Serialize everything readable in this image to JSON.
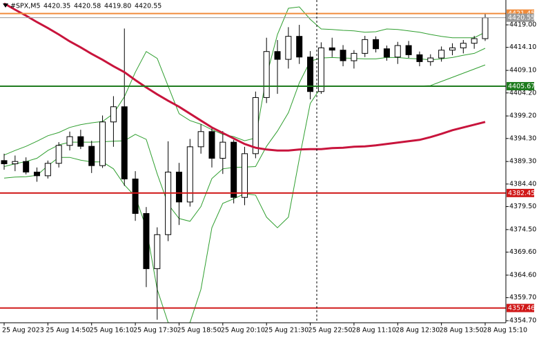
{
  "chart_data": {
    "type": "candlestick",
    "symbol": "#SPX,M5",
    "quote": [
      {
        "value": 4420.35,
        "label": "4420.35"
      },
      {
        "value": 4420.58,
        "label": "4420.58"
      },
      {
        "value": 4419.8,
        "label": "4419.80"
      },
      {
        "value": 4420.55,
        "label": "4420.55"
      }
    ],
    "categories": [
      "25 Aug 2023",
      null,
      null,
      null,
      "25 Aug 14:50",
      null,
      null,
      null,
      "25 Aug 16:10",
      null,
      null,
      null,
      "25 Aug 17:30",
      null,
      null,
      null,
      "25 Aug 18:50",
      null,
      null,
      null,
      "25 Aug 20:10",
      null,
      null,
      null,
      "25 Aug 21:30",
      null,
      null,
      null,
      "25 Aug 22:50",
      null,
      null,
      null,
      "28 Aug 11:10",
      null,
      null,
      null,
      "28 Aug 12:30",
      null,
      null,
      null,
      "28 Aug 13:50",
      null,
      null,
      null,
      "28 Aug 15:10"
    ],
    "open": [
      4389.5,
      4388.8,
      4389.3,
      4387.0,
      4386.2,
      4388.9,
      4392.8,
      4394.7,
      4392.6,
      4388.4,
      4397.9,
      4401.2,
      4385.5,
      4378.0,
      4366.0,
      4373.4,
      4387.0,
      4380.5,
      4392.5,
      4395.8,
      4390.0,
      4393.5,
      4381.5,
      4391.0,
      4403.2,
      4413.2,
      4411.5,
      4416.5,
      4412.0,
      4404.5,
      4414.0,
      4413.5,
      4411.2,
      4412.8,
      4415.8,
      4413.8,
      4412.0,
      4414.5,
      4412.5,
      4411.0,
      4411.8,
      4413.5,
      4414.0,
      4415.0,
      4416.0
    ],
    "high": [
      4391.0,
      4390.6,
      4390.2,
      4388.0,
      4389.5,
      4393.5,
      4395.8,
      4396.2,
      4393.8,
      4399.3,
      4403.5,
      4418.2,
      4387.2,
      4379.4,
      4375.0,
      4393.7,
      4389.0,
      4394.2,
      4397.4,
      4396.5,
      4395.9,
      4394.0,
      4392.5,
      4404.5,
      4416.2,
      4415.7,
      4418.5,
      4419.0,
      4413.3,
      4415.2,
      4416.2,
      4414.6,
      4413.5,
      4416.6,
      4416.5,
      4414.5,
      4415.3,
      4415.5,
      4413.2,
      4412.6,
      4414.3,
      4415.0,
      4415.7,
      4416.6,
      4421.5
    ],
    "low": [
      4387.5,
      4387.2,
      4386.5,
      4384.9,
      4385.6,
      4388.0,
      4391.7,
      4392.0,
      4386.8,
      4387.9,
      4392.5,
      4384.0,
      4376.4,
      4362.0,
      4354.9,
      4372.0,
      4375.5,
      4379.5,
      4391.0,
      4388.0,
      4386.6,
      4380.2,
      4379.8,
      4390.0,
      4402.0,
      4404.0,
      4409.5,
      4410.5,
      4402.8,
      4404.0,
      4412.0,
      4410.0,
      4409.5,
      4412.0,
      4413.0,
      4411.2,
      4410.5,
      4411.8,
      4410.0,
      4410.1,
      4411.0,
      4412.4,
      4412.8,
      4413.8,
      4415.5
    ],
    "close": [
      4388.8,
      4389.3,
      4387.0,
      4386.2,
      4388.9,
      4392.8,
      4394.7,
      4392.6,
      4388.4,
      4397.9,
      4401.2,
      4385.5,
      4378.0,
      4366.0,
      4373.4,
      4387.0,
      4380.5,
      4392.5,
      4395.8,
      4390.0,
      4393.5,
      4381.5,
      4391.0,
      4403.2,
      4413.2,
      4411.5,
      4416.5,
      4412.0,
      4404.5,
      4414.0,
      4413.5,
      4411.2,
      4412.8,
      4415.8,
      4413.8,
      4412.0,
      4414.5,
      4412.5,
      4411.0,
      4411.8,
      4413.5,
      4414.0,
      4415.0,
      4416.0,
      4420.55
    ],
    "up_color": "#ffffff",
    "down_color": "#000000",
    "indicators": [
      {
        "color": "#2e9e2e",
        "width": 1,
        "values": [
          4390.7,
          4391.7,
          4392.6,
          4393.7,
          4394.9,
          4395.6,
          4396.7,
          4397.3,
          4397.7,
          4398.0,
          4399.7,
          4403.4,
          4408.7,
          4413.2,
          4411.7,
          4405.7,
          4399.7,
          4398.2,
          4397.4,
          4396.2,
          4395.2,
          4394.7,
          4393.8,
          4394.4,
          4407.9,
          4416.9,
          4422.6,
          4422.9,
          4420.2,
          4418.1,
          4418.0,
          4417.8,
          4417.7,
          4417.4,
          4417.5,
          4418.1,
          4418.0,
          4417.7,
          4417.4,
          4416.9,
          4416.5,
          4416.2,
          4416.2,
          4416.2,
          4417.4
        ]
      },
      {
        "color": "#2e9e2e",
        "width": 1,
        "values": [
          4388.2,
          4388.8,
          4389.3,
          4390.0,
          4391.7,
          4392.9,
          4393.5,
          4393.5,
          4393.5,
          4393.6,
          4393.7,
          4393.8,
          4395.2,
          4394.1,
          4386.6,
          4380.0,
          4376.9,
          4376.3,
          4379.5,
          4385.6,
          4387.7,
          4388.0,
          4388.1,
          4388.2,
          4392.6,
          4395.9,
          4399.9,
          4406.4,
          4411.1,
          4411.8,
          4411.9,
          4411.8,
          4411.7,
          4411.6,
          4411.6,
          4411.9,
          4411.9,
          4411.7,
          4411.6,
          4411.4,
          4411.6,
          4411.9,
          4412.4,
          4412.8,
          4413.9
        ]
      },
      {
        "color": "#2e9e2e",
        "width": 1,
        "values": [
          4385.7,
          4385.9,
          4386.0,
          4386.3,
          4388.4,
          4390.2,
          4390.2,
          4389.6,
          4389.2,
          4389.2,
          4387.7,
          4384.2,
          4381.7,
          4374.9,
          4361.5,
          4354.3,
          4354.0,
          4354.3,
          4361.5,
          4374.9,
          4380.2,
          4381.2,
          4382.3,
          4382.0,
          4377.2,
          4374.9,
          4377.2,
          4389.9,
          4401.9,
          4405.5,
          4405.7,
          4405.7,
          4405.7,
          4405.7,
          4405.7,
          4405.7,
          4405.7,
          4405.7,
          4405.7,
          4405.8,
          4406.7,
          4407.6,
          4408.5,
          4409.4,
          4410.3
        ]
      },
      {
        "color": "#c8143c",
        "width": 3,
        "values": [
          4423.65,
          4422.3,
          4421.0,
          4419.6,
          4418.3,
          4416.9,
          4415.4,
          4414.1,
          4412.7,
          4411.4,
          4410.0,
          4408.7,
          4407.0,
          4405.4,
          4403.9,
          4402.5,
          4401.2,
          4399.7,
          4398.2,
          4396.7,
          4395.5,
          4394.3,
          4393.1,
          4392.3,
          4391.9,
          4391.7,
          4391.7,
          4391.9,
          4392.0,
          4392.0,
          4392.2,
          4392.3,
          4392.5,
          4392.6,
          4392.8,
          4393.1,
          4393.4,
          4393.7,
          4394.0,
          4394.6,
          4395.3,
          4396.1,
          4396.7,
          4397.3,
          4397.9
        ]
      }
    ],
    "levels": [
      {
        "value": 4421.45,
        "label": "4421.45",
        "color": "#f08c3c"
      },
      {
        "value": 4420.55,
        "label": "4420.55",
        "color": "#9a9a9a"
      },
      {
        "value": 4405.67,
        "label": "4405.67",
        "color": "#1e7b1e"
      },
      {
        "value": 4382.45,
        "label": "4382.45",
        "color": "#d01818"
      },
      {
        "value": 4357.46,
        "label": "4357.46",
        "color": "#d01818"
      }
    ],
    "ylim": [
      4354.25,
      4424.4
    ],
    "yticks": [
      {
        "value": 4419.0,
        "label": "4419.00"
      },
      {
        "value": 4414.1,
        "label": "4414.10"
      },
      {
        "value": 4409.1,
        "label": "4409.10"
      },
      {
        "value": 4404.2,
        "label": "4404.20"
      },
      {
        "value": 4399.2,
        "label": "4399.20"
      },
      {
        "value": 4394.3,
        "label": "4394.30"
      },
      {
        "value": 4389.3,
        "label": "4389.30"
      },
      {
        "value": 4384.4,
        "label": "4384.40"
      },
      {
        "value": 4379.5,
        "label": "4379.50"
      },
      {
        "value": 4374.5,
        "label": "4374.50"
      },
      {
        "value": 4369.6,
        "label": "4369.60"
      },
      {
        "value": 4364.6,
        "label": "4364.60"
      },
      {
        "value": 4359.7,
        "label": "4359.70"
      },
      {
        "value": 4354.7,
        "label": "4354.70"
      }
    ],
    "grid": false
  }
}
